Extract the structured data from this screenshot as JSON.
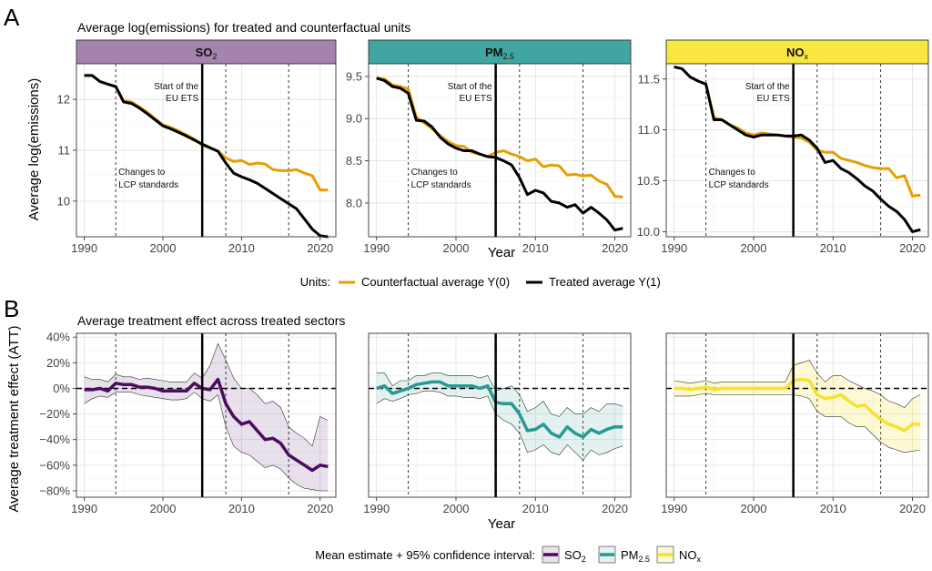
{
  "panel_a": {
    "letter": "A",
    "title": "Average log(emissions) for treated and counterfactual units",
    "ylabel": "Average log(emissions)",
    "xlabel": "Year",
    "legend_title": "Units:",
    "legend_items": [
      {
        "label": "Counterfactual average Y(0)",
        "color": "#E69F00"
      },
      {
        "label": "Treated average Y(1)",
        "color": "#000000"
      }
    ]
  },
  "panel_b": {
    "letter": "B",
    "title": "Average treatment effect across treated sectors",
    "ylabel": "Average treatment effect (ATT)",
    "xlabel": "Year",
    "legend_title": "Mean estimate + 95% confidence interval:"
  },
  "annotations": {
    "ets_line1": "Start of the",
    "ets_line2": "EU ETS",
    "lcp_line1": "Changes to",
    "lcp_line2": "LCP standards"
  },
  "colors": {
    "counterfactual": "#E69F00",
    "treated": "#000000",
    "so2": "#4B0D5E",
    "pm25": "#269A93",
    "nox": "#F5E12F",
    "strip_so2": "#A483AF",
    "strip_pm25": "#41A6A1",
    "strip_nox": "#F8E641"
  },
  "chart_data": [
    {
      "type": "line",
      "pollutant": {
        "main": "SO",
        "sub": "2"
      },
      "x": [
        1990,
        1991,
        1992,
        1993,
        1994,
        1995,
        1996,
        1997,
        1998,
        1999,
        2000,
        2001,
        2002,
        2003,
        2004,
        2005,
        2006,
        2007,
        2008,
        2009,
        2010,
        2011,
        2012,
        2013,
        2014,
        2015,
        2016,
        2017,
        2018,
        2019,
        2020,
        2021
      ],
      "xlim": [
        1989,
        2022
      ],
      "xticks": [
        1990,
        2000,
        2010,
        2020
      ],
      "ylim": [
        9.3,
        12.7
      ],
      "yticks": [
        10,
        11,
        12
      ],
      "yticklabels": [
        "10",
        "11",
        "12"
      ],
      "vlines_dashed": [
        1994,
        2008,
        2016
      ],
      "vline_solid": 2005,
      "series": [
        {
          "name": "Counterfactual average Y(0)",
          "values": [
            12.47,
            12.47,
            12.35,
            12.3,
            12.25,
            11.97,
            11.95,
            11.85,
            11.75,
            11.62,
            11.5,
            11.45,
            11.38,
            11.3,
            11.22,
            11.1,
            11.05,
            10.98,
            10.85,
            10.78,
            10.8,
            10.72,
            10.75,
            10.73,
            10.62,
            10.6,
            10.6,
            10.62,
            10.55,
            10.5,
            10.22,
            10.22
          ]
        },
        {
          "name": "Treated average Y(1)",
          "values": [
            12.47,
            12.47,
            12.35,
            12.3,
            12.25,
            11.95,
            11.92,
            11.83,
            11.72,
            11.6,
            11.48,
            11.42,
            11.35,
            11.28,
            11.2,
            11.12,
            11.05,
            10.98,
            10.75,
            10.55,
            10.48,
            10.42,
            10.35,
            10.25,
            10.15,
            10.05,
            9.95,
            9.85,
            9.65,
            9.45,
            9.32,
            9.3
          ]
        }
      ]
    },
    {
      "type": "line",
      "pollutant": {
        "main": "PM",
        "sub": "2.5"
      },
      "x": [
        1990,
        1991,
        1992,
        1993,
        1994,
        1995,
        1996,
        1997,
        1998,
        1999,
        2000,
        2001,
        2002,
        2003,
        2004,
        2005,
        2006,
        2007,
        2008,
        2009,
        2010,
        2011,
        2012,
        2013,
        2014,
        2015,
        2016,
        2017,
        2018,
        2019,
        2020,
        2021
      ],
      "xlim": [
        1989,
        2022
      ],
      "xticks": [
        1990,
        2000,
        2010,
        2020
      ],
      "ylim": [
        7.6,
        9.65
      ],
      "yticks": [
        8.0,
        8.5,
        9.0,
        9.5
      ],
      "yticklabels": [
        "8.0",
        "8.5",
        "9.0",
        "9.5"
      ],
      "vlines_dashed": [
        1994,
        2008,
        2016
      ],
      "vline_solid": 2005,
      "series": [
        {
          "name": "Counterfactual average Y(0)",
          "values": [
            9.48,
            9.47,
            9.4,
            9.38,
            9.35,
            9.02,
            8.95,
            8.88,
            8.8,
            8.73,
            8.68,
            8.67,
            8.6,
            8.58,
            8.55,
            8.6,
            8.62,
            8.58,
            8.55,
            8.5,
            8.52,
            8.43,
            8.45,
            8.44,
            8.33,
            8.34,
            8.32,
            8.33,
            8.26,
            8.22,
            8.08,
            8.07
          ]
        },
        {
          "name": "Treated average Y(1)",
          "values": [
            9.48,
            9.45,
            9.38,
            9.36,
            9.3,
            8.98,
            8.97,
            8.9,
            8.78,
            8.7,
            8.65,
            8.62,
            8.62,
            8.58,
            8.55,
            8.54,
            8.5,
            8.45,
            8.3,
            8.1,
            8.15,
            8.12,
            8.02,
            8.0,
            7.95,
            7.98,
            7.88,
            7.95,
            7.88,
            7.8,
            7.68,
            7.7
          ]
        }
      ]
    },
    {
      "type": "line",
      "pollutant": {
        "main": "NO",
        "sub": "x"
      },
      "x": [
        1990,
        1991,
        1992,
        1993,
        1994,
        1995,
        1996,
        1997,
        1998,
        1999,
        2000,
        2001,
        2002,
        2003,
        2004,
        2005,
        2006,
        2007,
        2008,
        2009,
        2010,
        2011,
        2012,
        2013,
        2014,
        2015,
        2016,
        2017,
        2018,
        2019,
        2020,
        2021
      ],
      "xlim": [
        1989,
        2022
      ],
      "xticks": [
        1990,
        2000,
        2010,
        2020
      ],
      "ylim": [
        9.95,
        11.65
      ],
      "yticks": [
        10.0,
        10.5,
        11.0,
        11.5
      ],
      "yticklabels": [
        "10.0",
        "10.5",
        "11.0",
        "11.5"
      ],
      "vlines_dashed": [
        1994,
        2008,
        2016
      ],
      "vline_solid": 2005,
      "series": [
        {
          "name": "Counterfactual average Y(0)",
          "values": [
            11.62,
            11.6,
            11.52,
            11.48,
            11.45,
            11.12,
            11.1,
            11.05,
            11.02,
            10.97,
            10.95,
            10.97,
            10.96,
            10.95,
            10.94,
            10.93,
            10.92,
            10.88,
            10.8,
            10.78,
            10.78,
            10.72,
            10.7,
            10.68,
            10.65,
            10.63,
            10.62,
            10.62,
            10.53,
            10.55,
            10.35,
            10.36
          ]
        },
        {
          "name": "Treated average Y(1)",
          "values": [
            11.62,
            11.6,
            11.52,
            11.48,
            11.45,
            11.1,
            11.1,
            11.05,
            11.0,
            10.95,
            10.93,
            10.95,
            10.95,
            10.95,
            10.94,
            10.94,
            10.95,
            10.9,
            10.82,
            10.68,
            10.7,
            10.62,
            10.58,
            10.52,
            10.45,
            10.4,
            10.32,
            10.25,
            10.2,
            10.12,
            10.0,
            10.02
          ]
        }
      ]
    },
    {
      "type": "area",
      "x": [
        1990,
        1991,
        1992,
        1993,
        1994,
        1995,
        1996,
        1997,
        1998,
        1999,
        2000,
        2001,
        2002,
        2003,
        2004,
        2005,
        2006,
        2007,
        2008,
        2009,
        2010,
        2011,
        2012,
        2013,
        2014,
        2015,
        2016,
        2017,
        2018,
        2019,
        2020,
        2021
      ],
      "xlim": [
        1989,
        2022
      ],
      "xticks": [
        1990,
        2000,
        2010,
        2020
      ],
      "ylim": [
        -0.85,
        0.43
      ],
      "yticks": [
        -0.8,
        -0.6,
        -0.4,
        -0.2,
        0,
        0.2,
        0.4
      ],
      "yticklabels": [
        "−80%",
        "−60%",
        "−40%",
        "−20%",
        "0%",
        "20%",
        "40%"
      ],
      "vlines_dashed": [
        1994,
        2008,
        2016
      ],
      "vline_solid": 2005,
      "series": [
        {
          "name": "SO2",
          "values": [
            -0.01,
            -0.01,
            0.0,
            -0.02,
            0.04,
            0.03,
            0.03,
            0.01,
            0.01,
            0.0,
            -0.02,
            -0.02,
            -0.02,
            -0.02,
            0.04,
            0.0,
            -0.01,
            0.07,
            -0.12,
            -0.22,
            -0.28,
            -0.26,
            -0.33,
            -0.4,
            -0.39,
            -0.43,
            -0.52,
            -0.56,
            -0.6,
            -0.64,
            -0.6,
            -0.61
          ],
          "lower": [
            -0.12,
            -0.08,
            -0.06,
            -0.07,
            -0.03,
            -0.03,
            -0.03,
            -0.05,
            -0.06,
            -0.07,
            -0.08,
            -0.09,
            -0.09,
            -0.08,
            -0.03,
            -0.08,
            -0.1,
            -0.05,
            -0.3,
            -0.45,
            -0.5,
            -0.52,
            -0.57,
            -0.62,
            -0.6,
            -0.63,
            -0.7,
            -0.75,
            -0.78,
            -0.79,
            -0.8,
            -0.8
          ],
          "upper": [
            0.09,
            0.07,
            0.07,
            0.05,
            0.11,
            0.09,
            0.09,
            0.07,
            0.08,
            0.07,
            0.06,
            0.05,
            0.05,
            0.05,
            0.12,
            0.08,
            0.18,
            0.35,
            0.22,
            0.08,
            0.0,
            0.0,
            -0.05,
            -0.12,
            -0.1,
            -0.15,
            -0.3,
            -0.35,
            -0.39,
            -0.45,
            -0.22,
            -0.25
          ]
        }
      ]
    },
    {
      "type": "area",
      "x": [
        1990,
        1991,
        1992,
        1993,
        1994,
        1995,
        1996,
        1997,
        1998,
        1999,
        2000,
        2001,
        2002,
        2003,
        2004,
        2005,
        2006,
        2007,
        2008,
        2009,
        2010,
        2011,
        2012,
        2013,
        2014,
        2015,
        2016,
        2017,
        2018,
        2019,
        2020,
        2021
      ],
      "xlim": [
        1989,
        2022
      ],
      "xticks": [
        1990,
        2000,
        2010,
        2020
      ],
      "ylim": [
        -0.85,
        0.43
      ],
      "yticks": [
        -0.8,
        -0.6,
        -0.4,
        -0.2,
        0,
        0.2,
        0.4
      ],
      "yticklabels": [
        "−80%",
        "−60%",
        "−40%",
        "−20%",
        "0%",
        "20%",
        "40%"
      ],
      "vlines_dashed": [
        1994,
        2008,
        2016
      ],
      "vline_solid": 2005,
      "series": [
        {
          "name": "PM2.5",
          "values": [
            0.0,
            0.02,
            -0.04,
            -0.02,
            0.0,
            0.03,
            0.04,
            0.05,
            0.05,
            0.02,
            0.02,
            0.02,
            0.02,
            0.0,
            0.02,
            -0.11,
            -0.12,
            -0.12,
            -0.2,
            -0.33,
            -0.32,
            -0.28,
            -0.35,
            -0.38,
            -0.3,
            -0.35,
            -0.38,
            -0.32,
            -0.35,
            -0.32,
            -0.3,
            -0.3
          ],
          "lower": [
            -0.12,
            -0.08,
            -0.1,
            -0.08,
            -0.05,
            -0.04,
            -0.02,
            -0.02,
            -0.03,
            -0.06,
            -0.06,
            -0.07,
            -0.07,
            -0.08,
            -0.06,
            -0.2,
            -0.25,
            -0.28,
            -0.35,
            -0.5,
            -0.48,
            -0.44,
            -0.5,
            -0.52,
            -0.44,
            -0.5,
            -0.56,
            -0.48,
            -0.52,
            -0.5,
            -0.47,
            -0.45
          ],
          "upper": [
            0.12,
            0.12,
            0.02,
            0.06,
            0.06,
            0.1,
            0.1,
            0.12,
            0.12,
            0.1,
            0.1,
            0.1,
            0.1,
            0.08,
            0.1,
            -0.02,
            0.0,
            0.02,
            -0.05,
            -0.18,
            -0.15,
            -0.1,
            -0.2,
            -0.22,
            -0.15,
            -0.2,
            -0.2,
            -0.15,
            -0.18,
            -0.12,
            -0.12,
            -0.14
          ]
        }
      ]
    },
    {
      "type": "area",
      "x": [
        1990,
        1991,
        1992,
        1993,
        1994,
        1995,
        1996,
        1997,
        1998,
        1999,
        2000,
        2001,
        2002,
        2003,
        2004,
        2005,
        2006,
        2007,
        2008,
        2009,
        2010,
        2011,
        2012,
        2013,
        2014,
        2015,
        2016,
        2017,
        2018,
        2019,
        2020,
        2021
      ],
      "xlim": [
        1989,
        2022
      ],
      "xticks": [
        1990,
        2000,
        2010,
        2020
      ],
      "ylim": [
        -0.85,
        0.43
      ],
      "yticks": [
        -0.8,
        -0.6,
        -0.4,
        -0.2,
        0,
        0.2,
        0.4
      ],
      "yticklabels": [
        "−80%",
        "−60%",
        "−40%",
        "−20%",
        "0%",
        "20%",
        "40%"
      ],
      "vlines_dashed": [
        1994,
        2008,
        2016
      ],
      "vline_solid": 2005,
      "series": [
        {
          "name": "NOx",
          "values": [
            0.0,
            0.0,
            -0.01,
            0.0,
            0.01,
            -0.01,
            0.0,
            0.0,
            0.0,
            0.0,
            0.0,
            0.0,
            0.0,
            0.0,
            0.0,
            0.06,
            0.07,
            0.06,
            -0.05,
            -0.08,
            -0.07,
            -0.05,
            -0.1,
            -0.14,
            -0.13,
            -0.19,
            -0.24,
            -0.28,
            -0.3,
            -0.33,
            -0.28,
            -0.28
          ],
          "lower": [
            -0.06,
            -0.06,
            -0.06,
            -0.05,
            -0.04,
            -0.05,
            -0.05,
            -0.05,
            -0.05,
            -0.05,
            -0.05,
            -0.05,
            -0.05,
            -0.05,
            -0.05,
            -0.05,
            -0.06,
            -0.08,
            -0.18,
            -0.22,
            -0.22,
            -0.22,
            -0.27,
            -0.3,
            -0.3,
            -0.36,
            -0.42,
            -0.46,
            -0.48,
            -0.5,
            -0.49,
            -0.48
          ],
          "upper": [
            0.06,
            0.05,
            0.04,
            0.05,
            0.06,
            0.04,
            0.05,
            0.05,
            0.05,
            0.05,
            0.05,
            0.05,
            0.05,
            0.05,
            0.05,
            0.18,
            0.2,
            0.22,
            0.12,
            0.05,
            0.1,
            0.1,
            0.06,
            0.03,
            0.0,
            -0.02,
            -0.05,
            -0.1,
            -0.12,
            -0.15,
            -0.08,
            -0.05
          ]
        }
      ]
    }
  ]
}
